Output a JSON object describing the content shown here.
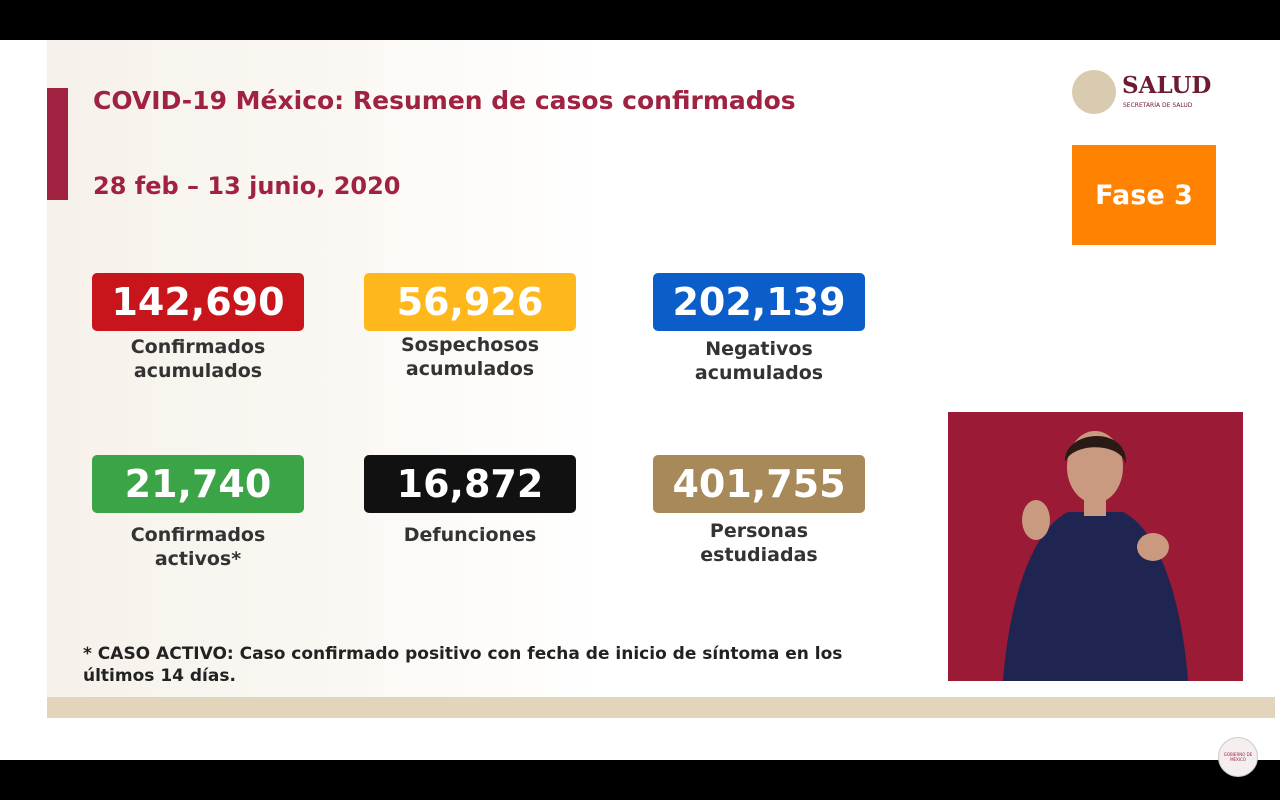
{
  "header": {
    "title": "COVID-19 México: Resumen de casos confirmados",
    "date": "28 feb – 13 junio, 2020"
  },
  "logo": {
    "name": "SALUD",
    "subtitle": "SECRETARÍA DE SALUD"
  },
  "phase": "Fase 3",
  "cards": [
    {
      "value": "142,690",
      "label": [
        "Confirmados",
        "acumulados"
      ]
    },
    {
      "value": "56,926",
      "label": [
        "Sospechosos",
        "acumulados"
      ]
    },
    {
      "value": "202,139",
      "label": [
        "Negativos",
        "acumulados"
      ]
    },
    {
      "value": "21,740",
      "label": [
        "Confirmados",
        "activos*"
      ]
    },
    {
      "value": "16,872",
      "label": [
        "Defunciones"
      ]
    },
    {
      "value": "401,755",
      "label": [
        "Personas",
        "estudiadas"
      ]
    }
  ],
  "footnote": [
    "* CASO ACTIVO: Caso confirmado positivo con fecha de inicio de síntoma en los",
    "últimos 14 días."
  ],
  "corner_logo": "GOBIERNO DE MÉXICO"
}
